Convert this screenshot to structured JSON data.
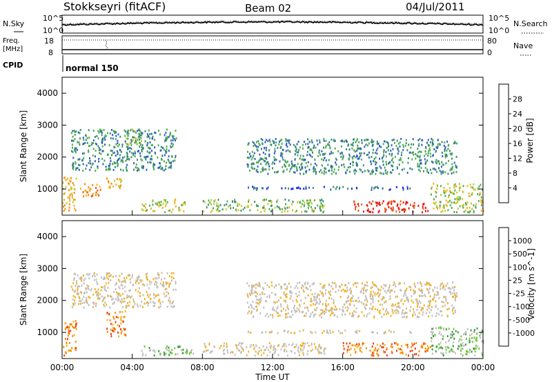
{
  "header": {
    "station": "Stokkseyri (fitACF)",
    "beam": "Beam 02",
    "date": "04/Jul/2011"
  },
  "nsky_panel": {
    "left_label": "N.Sky",
    "right_label": "N.Search",
    "left_ticks": [
      "10^5",
      "10^0"
    ],
    "right_ticks": [
      "10^5",
      "10^0"
    ]
  },
  "freq_panel": {
    "left_label_1": "Freq.",
    "left_label_2": "[MHz]",
    "right_label": "Nave",
    "left_ticks": [
      "18",
      "8"
    ],
    "right_ticks": [
      "80",
      "0"
    ]
  },
  "cpid_panel": {
    "label": "CPID",
    "value": "normal 150"
  },
  "x_axis": {
    "label": "Time UT",
    "ticks": [
      "00:00",
      "04:00",
      "08:00",
      "12:00",
      "16:00",
      "20:00",
      "00:00"
    ]
  },
  "colors": {
    "power": [
      "#1a1aff",
      "#2f5fc0",
      "#3a8f6a",
      "#4fae4f",
      "#c8c830",
      "#f5b020",
      "#f58c10",
      "#f05a10",
      "#e81010"
    ],
    "velocity": [
      "#e81010",
      "#f04010",
      "#f58c10",
      "#f5b020",
      "#c0c0c0",
      "#c0c0c0",
      "#70c840",
      "#3a9a3a",
      "#2a8a8a",
      "#1a1aff"
    ]
  },
  "chart_data": [
    {
      "type": "heatmap",
      "name": "power",
      "ylabel": "Slant Range [km]",
      "xlabel": "",
      "ylim": [
        180,
        4500
      ],
      "y_ticks": [
        "1000",
        "2000",
        "3000",
        "4000"
      ],
      "colorbar_label": "Power [dB]",
      "colorbar_ticks": [
        "4",
        "8",
        "12",
        "16",
        "20",
        "24",
        "28"
      ],
      "regions": [
        {
          "t0": 0.0,
          "t1": 0.8,
          "r0": 300,
          "r1": 1400,
          "level": 5
        },
        {
          "t0": 1.0,
          "t1": 2.2,
          "r0": 800,
          "r1": 1200,
          "level": 6
        },
        {
          "t0": 2.5,
          "t1": 3.4,
          "r0": 1000,
          "r1": 1400,
          "level": 5
        },
        {
          "t0": 0.5,
          "t1": 6.5,
          "r0": 1600,
          "r1": 2900,
          "level": 2
        },
        {
          "t0": 3.5,
          "t1": 4.5,
          "r0": 2400,
          "r1": 2900,
          "level": 3
        },
        {
          "t0": 4.5,
          "t1": 7.0,
          "r0": 300,
          "r1": 700,
          "level": 4
        },
        {
          "t0": 8.0,
          "t1": 15.0,
          "r0": 300,
          "r1": 700,
          "level": 3
        },
        {
          "t0": 10.5,
          "t1": 22.5,
          "r0": 1500,
          "r1": 2600,
          "level": 2
        },
        {
          "t0": 10.5,
          "t1": 20.0,
          "r0": 1000,
          "r1": 1100,
          "level": 1
        },
        {
          "t0": 16.5,
          "t1": 21.0,
          "r0": 300,
          "r1": 650,
          "level": 8
        },
        {
          "t0": 21.0,
          "t1": 24.0,
          "r0": 300,
          "r1": 1200,
          "level": 4
        }
      ]
    },
    {
      "type": "heatmap",
      "name": "velocity",
      "ylabel": "Slant Range [km]",
      "xlabel": "Time UT",
      "ylim": [
        180,
        4500
      ],
      "y_ticks": [
        "1000",
        "2000",
        "3000",
        "4000"
      ],
      "colorbar_label": "Velocity [m s^-1]",
      "colorbar_ticks": [
        "1000",
        "500",
        "100",
        "25",
        "-25",
        "-100",
        "-500",
        "-1000"
      ],
      "regions": [
        {
          "t0": 0.0,
          "t1": 0.8,
          "r0": 300,
          "r1": 1400,
          "level": 2
        },
        {
          "t0": 2.5,
          "t1": 3.6,
          "r0": 900,
          "r1": 1700,
          "level": 2
        },
        {
          "t0": 0.5,
          "t1": 6.5,
          "r0": 1800,
          "r1": 2900,
          "level": 4
        },
        {
          "t0": 4.5,
          "t1": 7.5,
          "r0": 300,
          "r1": 600,
          "level": 6
        },
        {
          "t0": 8.0,
          "t1": 15.0,
          "r0": 300,
          "r1": 700,
          "level": 4
        },
        {
          "t0": 10.5,
          "t1": 22.5,
          "r0": 1500,
          "r1": 2600,
          "level": 4
        },
        {
          "t0": 10.5,
          "t1": 20.0,
          "r0": 1000,
          "r1": 1100,
          "level": 4
        },
        {
          "t0": 16.0,
          "t1": 21.0,
          "r0": 300,
          "r1": 700,
          "level": 2
        },
        {
          "t0": 21.0,
          "t1": 24.0,
          "r0": 300,
          "r1": 1200,
          "level": 6
        }
      ]
    }
  ]
}
